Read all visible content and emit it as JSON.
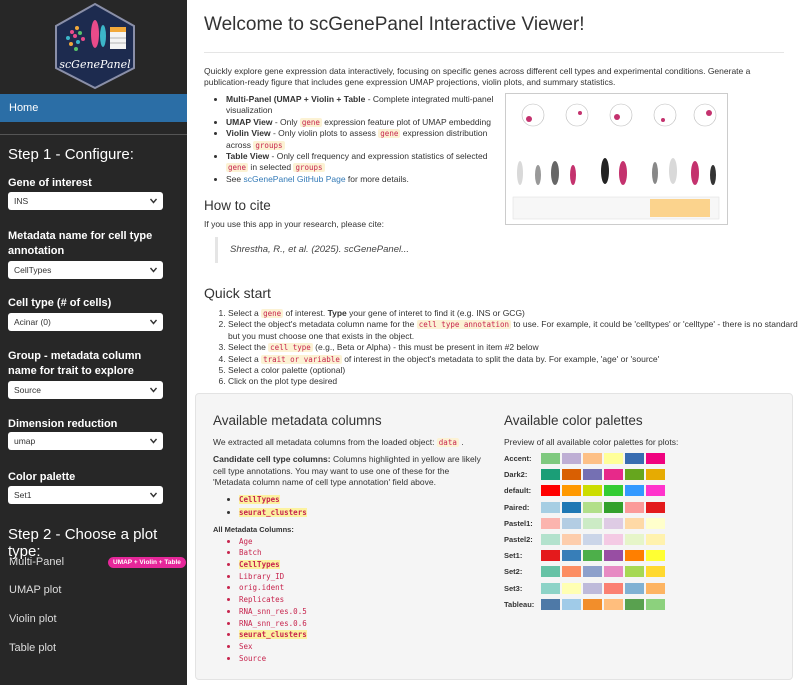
{
  "sidebar": {
    "logo_text": "scGenePanel",
    "home": "Home",
    "step1_title": "Step 1 - Configure:",
    "fields": [
      {
        "label": "Gene of interest",
        "value": "INS"
      },
      {
        "label": "Metadata name for cell type annotation",
        "value": "CellTypes"
      },
      {
        "label": "Cell type (# of cells)",
        "value": "Acinar (0)"
      },
      {
        "label": "Group - metadata column name for trait to explore",
        "value": "Source"
      },
      {
        "label": "Dimension reduction embedding",
        "value": "umap"
      },
      {
        "label": "Color palette",
        "value": "Set1"
      }
    ],
    "step2_title": "Step 2 - Choose a plot type:",
    "plot_types": [
      {
        "label": "Multi-Panel",
        "badge": "UMAP + Violin + Table"
      },
      {
        "label": "UMAP plot"
      },
      {
        "label": "Violin plot"
      },
      {
        "label": "Table plot"
      }
    ]
  },
  "main": {
    "title": "Welcome to scGenePanel Interactive Viewer!",
    "intro": "Quickly explore gene expression data interactively, focusing on specific genes across different cell types and experimental conditions. Generate a publication-ready figure that includes gene expression UMAP projections, violin plots, and summary statistics.",
    "features": [
      [
        {
          "b": "Multi-Panel (UMAP + Violin + Table"
        },
        " - Complete integrated multi-panel visualization"
      ],
      [
        {
          "b": "UMAP View"
        },
        " - Only ",
        {
          "code": "gene"
        },
        " expression feature plot of UMAP embedding"
      ],
      [
        {
          "b": "Violin View"
        },
        " - Only violin plots to assess ",
        {
          "code": "gene"
        },
        " expression distribution across ",
        {
          "code": "groups"
        }
      ],
      [
        {
          "b": "Table View"
        },
        " - Only cell frequency and expression statistics of selected ",
        {
          "code": "gene"
        },
        " in selected ",
        {
          "code": "groups"
        }
      ],
      [
        "See ",
        {
          "a": "scGenePanel GitHub Page"
        },
        " for more details."
      ]
    ],
    "cite_title": "How to cite",
    "cite_intro": "If you use this app in your research, please cite:",
    "citation": "Shrestha, R., et al. (2025). scGenePanel...",
    "quick_title": "Quick start",
    "steps": [
      [
        "Select a ",
        {
          "code": "gene"
        },
        " of interest. ",
        {
          "b": "Type"
        },
        " your gene of interet to find it (e.g. INS or GCG)"
      ],
      [
        "Select the object's metadata column name for the ",
        {
          "code": "cell type annotation"
        },
        " to use. For example, it could be 'celltypes' or 'celltype' - there is no standard but you must choose one that exists in the object."
      ],
      [
        "Select the ",
        {
          "code": "cell type"
        },
        " (e.g., Beta or Alpha) - this must be present in item #2 below"
      ],
      [
        "Select a ",
        {
          "code": "trait or variable"
        },
        " of interest in the object's metadata to split the data by. For example, 'age' or 'source'"
      ],
      [
        "Select a color palette (optional)"
      ],
      [
        "Click on the plot type desired"
      ]
    ],
    "metadata": {
      "title": "Available metadata columns",
      "extracted": [
        "We extracted all metadata columns from the loaded object: ",
        {
          "code": "data"
        },
        " ."
      ],
      "candidate_note": [
        {
          "b": "Candidate cell type columns:"
        },
        " Columns highlighted in yellow are likely cell type annotations. You may want to use one of these for the 'Metadata column name of cell type annotation' field above."
      ],
      "candidates": [
        "CellTypes",
        "seurat_clusters"
      ],
      "all_title": "All Metadata Columns:",
      "columns": [
        {
          "name": "Age",
          "highlight": false
        },
        {
          "name": "Batch",
          "highlight": false
        },
        {
          "name": "CellTypes",
          "highlight": true
        },
        {
          "name": "Library_ID",
          "highlight": false
        },
        {
          "name": "orig.ident",
          "highlight": false
        },
        {
          "name": "Replicates",
          "highlight": false
        },
        {
          "name": "RNA_snn_res.0.5",
          "highlight": false
        },
        {
          "name": "RNA_snn_res.0.6",
          "highlight": false
        },
        {
          "name": "seurat_clusters",
          "highlight": true
        },
        {
          "name": "Sex",
          "highlight": false
        },
        {
          "name": "Source",
          "highlight": false
        }
      ]
    },
    "palettes": {
      "title": "Available color palettes",
      "subtitle": "Preview of all available color palettes for plots:",
      "list": [
        {
          "name": "Accent:",
          "colors": [
            "#7fc97f",
            "#beaed4",
            "#fdc086",
            "#ffff99",
            "#386cb0",
            "#f0027f"
          ]
        },
        {
          "name": "Dark2:",
          "colors": [
            "#1b9e77",
            "#d95f02",
            "#7570b3",
            "#e7298a",
            "#66a61e",
            "#e6ab02"
          ]
        },
        {
          "name": "default:",
          "colors": [
            "#ff0000",
            "#ff9900",
            "#ccdd00",
            "#33cc33",
            "#3399ff",
            "#ff33cc"
          ]
        },
        {
          "name": "Paired:",
          "colors": [
            "#a6cee3",
            "#1f78b4",
            "#b2df8a",
            "#33a02c",
            "#fb9a99",
            "#e31a1c"
          ]
        },
        {
          "name": "Pastel1:",
          "colors": [
            "#fbb4ae",
            "#b3cde3",
            "#ccebc5",
            "#decbe4",
            "#fed9a6",
            "#ffffcc"
          ]
        },
        {
          "name": "Pastel2:",
          "colors": [
            "#b3e2cd",
            "#fdcdac",
            "#cbd5e8",
            "#f4cae4",
            "#e6f5c9",
            "#fff2ae"
          ]
        },
        {
          "name": "Set1:",
          "colors": [
            "#e41a1c",
            "#377eb8",
            "#4daf4a",
            "#984ea3",
            "#ff7f00",
            "#ffff33"
          ]
        },
        {
          "name": "Set2:",
          "colors": [
            "#66c2a5",
            "#fc8d62",
            "#8da0cb",
            "#e78ac3",
            "#a6d854",
            "#ffd92f"
          ]
        },
        {
          "name": "Set3:",
          "colors": [
            "#8dd3c7",
            "#ffffb3",
            "#bebada",
            "#fb8072",
            "#80b1d3",
            "#fdb462"
          ]
        },
        {
          "name": "Tableau:",
          "colors": [
            "#4e79a7",
            "#a0cbe8",
            "#f28e2b",
            "#ffbe7d",
            "#59a14f",
            "#8cd17d"
          ]
        }
      ]
    }
  }
}
